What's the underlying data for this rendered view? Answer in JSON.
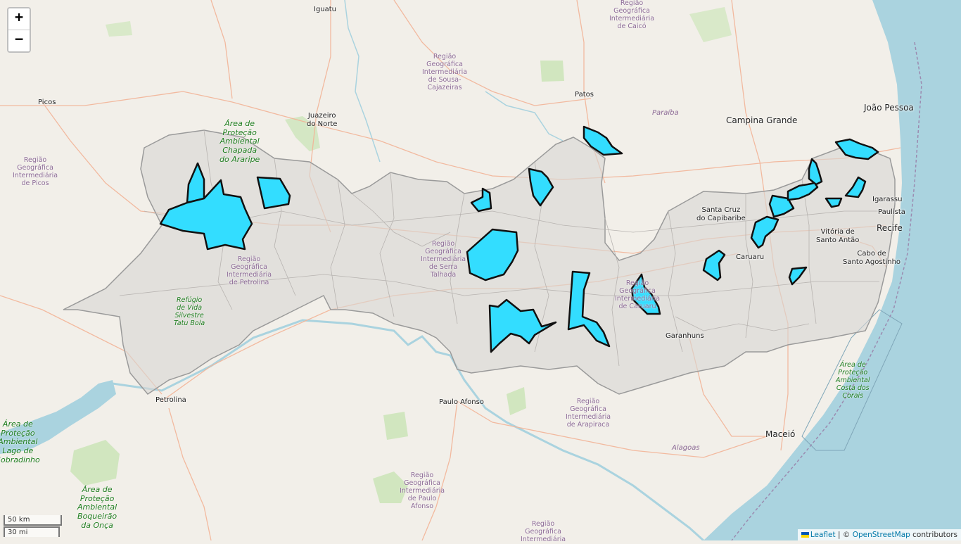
{
  "map": {
    "zoom_in_label": "+",
    "zoom_out_label": "−",
    "scale": {
      "metric": "50 km",
      "imperial": "30 mi"
    },
    "attribution": {
      "leaflet": "Leaflet",
      "separator": " | © ",
      "osm": "OpenStreetMap",
      "suffix": " contributors"
    }
  },
  "colors": {
    "land": "#f2efe9",
    "sea": "#aad3df",
    "region_fill": "#d9d6d4",
    "region_border": "#9a9a9a",
    "highlight_fill": "#33ddff",
    "highlight_border": "#111111",
    "road": "#f3b497",
    "park": "#c8e4b4"
  },
  "labels": {
    "cities": {
      "igatu": "Iguatu",
      "picos": "Picos",
      "patos": "Patos",
      "juazeiro": "Juazeiro\ndo Norte",
      "campina": "Campina Grande",
      "joao_pessoa": "João Pessoa",
      "santa_cruz": "Santa Cruz\ndo Capibaribe",
      "caruaru": "Caruaru",
      "igarassu": "Igarassu",
      "paulista": "Paulista",
      "recife": "Recife",
      "vitoria": "Vitória de\nSanto Antão",
      "cabo": "Cabo de\nSanto Agostinho",
      "garanhuns": "Garanhuns",
      "petrolina": "Petrolina",
      "paulo_afonso": "Paulo Afonso",
      "maceio": "Maceió"
    },
    "regions": {
      "caico": "Região\nGeográfica\nIntermediária\nde Caicó",
      "sousa": "Região\nGeográfica\nIntermediária\nde Sousa-\nCajazeiras",
      "picos": "Região\nGeográfica\nIntermediária\nde Picos",
      "serra_talhada": "Região\nGeográfica\nIntermediária\nde Serra\nTalhada",
      "petrolina": "Região\nGeográfica\nIntermediária\nde Petrolina",
      "caruaru": "Região\nGeográfica\nIntermediária\nde Caruaru",
      "arapiraca": "Região\nGeográfica\nIntermediária\nde Arapiraca",
      "paulo_afonso": "Região\nGeográfica\nIntermediária\nde Paulo\nAfonso",
      "bottom": "Região\nGeográfica\nIntermediária"
    },
    "states": {
      "paraiba": "Paraíba",
      "alagoas": "Alagoas"
    },
    "parks": {
      "araripe": "Área de\nProteção\nAmbiental\nChapada\ndo Araripe",
      "tatu_bola": "Refúgio\nde Vida\nSilvestre\nTatu Bola",
      "sobradinho": "Área de\nProteção\nAmbiental\nLago de\nSobradinho",
      "boqueirao": "Área de\nProteção\nAmbiental\nBoqueirão\nda Onça",
      "corais": "Área de\nProteção\nAmbiental\nCosta dos\nCorais"
    }
  }
}
